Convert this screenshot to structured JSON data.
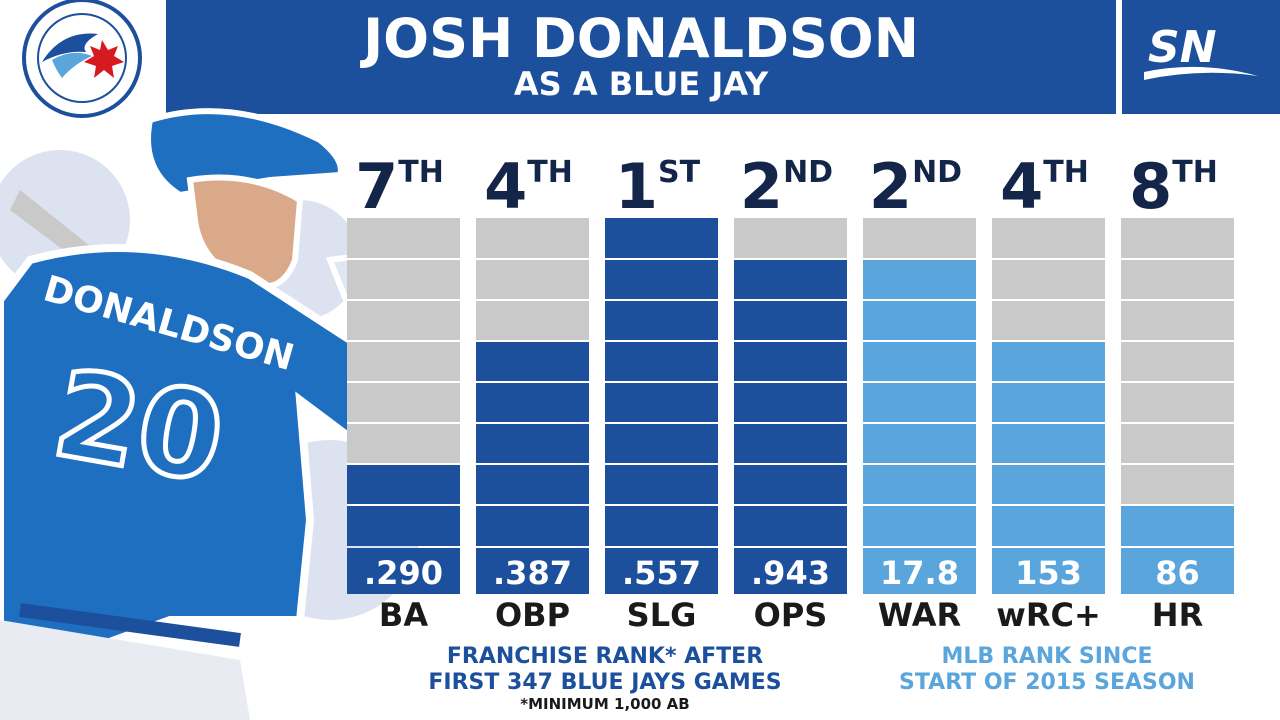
{
  "header": {
    "title": "JOSH DONALDSON",
    "subtitle": "AS A BLUE JAY"
  },
  "logos": {
    "team_logo_text": "TORONTO BLUE JAYS",
    "network_logo_text": "SN"
  },
  "player": {
    "jersey_name": "DONALDSON",
    "jersey_number": "20"
  },
  "colors": {
    "header_blue": "#1c4f9c",
    "franchise_bar": "#1c4f9c",
    "mlb_bar": "#5aa6dc",
    "track_gray": "#c9c9c9",
    "rank_text": "#14254a"
  },
  "captions": {
    "franchise_line1": "FRANCHISE RANK* AFTER",
    "franchise_line2": "FIRST 347 BLUE JAYS GAMES",
    "footnote": "*MINIMUM 1,000 AB",
    "mlb_line1": "MLB RANK SINCE",
    "mlb_line2": "START OF 2015 SEASON"
  },
  "chart_data": {
    "type": "bar",
    "categories": [
      "BA",
      "OBP",
      "SLG",
      "OPS",
      "WAR",
      "wRC+",
      "HR"
    ],
    "value_labels": [
      ".290",
      ".387",
      ".557",
      ".943",
      "17.8",
      "153",
      "86"
    ],
    "values": [
      0.29,
      0.387,
      0.557,
      0.943,
      17.8,
      153,
      86
    ],
    "rank_numbers": [
      "7",
      "4",
      "1",
      "2",
      "2",
      "4",
      "8"
    ],
    "rank_suffixes": [
      "TH",
      "TH",
      "ST",
      "ND",
      "ND",
      "TH",
      "TH"
    ],
    "ranks": [
      7,
      4,
      1,
      2,
      2,
      4,
      8
    ],
    "rank_scale_max": 8,
    "groups": [
      "franchise",
      "franchise",
      "franchise",
      "franchise",
      "mlb",
      "mlb",
      "mlb"
    ]
  }
}
